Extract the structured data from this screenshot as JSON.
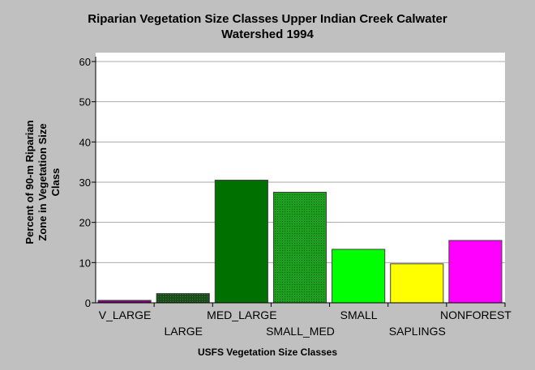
{
  "chart_data": {
    "type": "bar",
    "title_lines": [
      "Riparian Vegetation Size Classes Upper Indian Creek Calwater",
      "Watershed 1994"
    ],
    "xlabel": "USFS Vegetation Size Classes",
    "ylabel_lines": [
      "Percent of 90-m Riparian",
      "Zone in Vegetation Size",
      "Class"
    ],
    "ylim": [
      0,
      60
    ],
    "yticks": [
      0,
      10,
      20,
      30,
      40,
      50,
      60
    ],
    "grid": true,
    "categories": [
      "V_LARGE",
      "LARGE",
      "MED_LARGE",
      "SMALL_MED",
      "SMALL",
      "SAPLINGS",
      "NONFOREST"
    ],
    "values": [
      0.6,
      2.3,
      30.5,
      27.5,
      13.3,
      9.7,
      15.5
    ],
    "colors": [
      "#800080",
      "#1a4d1a",
      "#007000",
      "#1e9e1e",
      "#00ff00",
      "#ffff00",
      "#ff00ff"
    ]
  }
}
